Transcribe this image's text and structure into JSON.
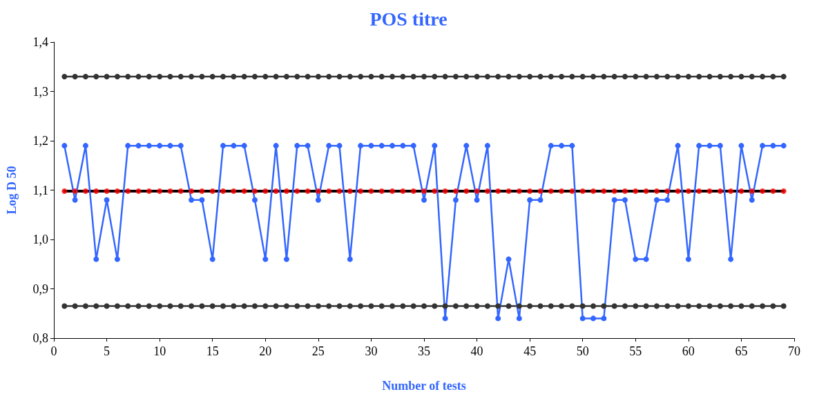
{
  "chart_data": {
    "type": "line",
    "title": "POS titre",
    "xlabel": "Number of tests",
    "ylabel": "Log D 50",
    "x": [
      1,
      2,
      3,
      4,
      5,
      6,
      7,
      8,
      9,
      10,
      11,
      12,
      13,
      14,
      15,
      16,
      17,
      18,
      19,
      20,
      21,
      22,
      23,
      24,
      25,
      26,
      27,
      28,
      29,
      30,
      31,
      32,
      33,
      34,
      35,
      36,
      37,
      38,
      39,
      40,
      41,
      42,
      43,
      44,
      45,
      46,
      47,
      48,
      49,
      50,
      51,
      52,
      53,
      54,
      55,
      56,
      57,
      58,
      59,
      60,
      61,
      62,
      63,
      64,
      65,
      66,
      67,
      68,
      69
    ],
    "series": [
      {
        "color": "#333333",
        "values": [
          1.33,
          1.33,
          1.33,
          1.33,
          1.33,
          1.33,
          1.33,
          1.33,
          1.33,
          1.33,
          1.33,
          1.33,
          1.33,
          1.33,
          1.33,
          1.33,
          1.33,
          1.33,
          1.33,
          1.33,
          1.33,
          1.33,
          1.33,
          1.33,
          1.33,
          1.33,
          1.33,
          1.33,
          1.33,
          1.33,
          1.33,
          1.33,
          1.33,
          1.33,
          1.33,
          1.33,
          1.33,
          1.33,
          1.33,
          1.33,
          1.33,
          1.33,
          1.33,
          1.33,
          1.33,
          1.33,
          1.33,
          1.33,
          1.33,
          1.33,
          1.33,
          1.33,
          1.33,
          1.33,
          1.33,
          1.33,
          1.33,
          1.33,
          1.33,
          1.33,
          1.33,
          1.33,
          1.33,
          1.33,
          1.33,
          1.33,
          1.33,
          1.33,
          1.33
        ]
      },
      {
        "color": "#333333",
        "values": [
          0.865,
          0.865,
          0.865,
          0.865,
          0.865,
          0.865,
          0.865,
          0.865,
          0.865,
          0.865,
          0.865,
          0.865,
          0.865,
          0.865,
          0.865,
          0.865,
          0.865,
          0.865,
          0.865,
          0.865,
          0.865,
          0.865,
          0.865,
          0.865,
          0.865,
          0.865,
          0.865,
          0.865,
          0.865,
          0.865,
          0.865,
          0.865,
          0.865,
          0.865,
          0.865,
          0.865,
          0.865,
          0.865,
          0.865,
          0.865,
          0.865,
          0.865,
          0.865,
          0.865,
          0.865,
          0.865,
          0.865,
          0.865,
          0.865,
          0.865,
          0.865,
          0.865,
          0.865,
          0.865,
          0.865,
          0.865,
          0.865,
          0.865,
          0.865,
          0.865,
          0.865,
          0.865,
          0.865,
          0.865,
          0.865,
          0.865,
          0.865,
          0.865,
          0.865
        ]
      },
      {
        "color": "#000000",
        "marker": "none",
        "values": [
          1.098,
          1.098,
          1.098,
          1.098,
          1.098,
          1.098,
          1.098,
          1.098,
          1.098,
          1.098,
          1.098,
          1.098,
          1.098,
          1.098,
          1.098,
          1.098,
          1.098,
          1.098,
          1.098,
          1.098,
          1.098,
          1.098,
          1.098,
          1.098,
          1.098,
          1.098,
          1.098,
          1.098,
          1.098,
          1.098,
          1.098,
          1.098,
          1.098,
          1.098,
          1.098,
          1.098,
          1.098,
          1.098,
          1.098,
          1.098,
          1.098,
          1.098,
          1.098,
          1.098,
          1.098,
          1.098,
          1.098,
          1.098,
          1.098,
          1.098,
          1.098,
          1.098,
          1.098,
          1.098,
          1.098,
          1.098,
          1.098,
          1.098,
          1.098,
          1.098,
          1.098,
          1.098,
          1.098,
          1.098,
          1.098,
          1.098,
          1.098,
          1.098,
          1.098
        ]
      },
      {
        "type": "scatter",
        "color": "#ff0000",
        "values": [
          1.098,
          1.098,
          1.098,
          1.098,
          1.098,
          1.098,
          1.098,
          1.098,
          1.098,
          1.098,
          1.098,
          1.098,
          1.098,
          1.098,
          1.098,
          1.098,
          1.098,
          1.098,
          1.098,
          1.098,
          1.098,
          1.098,
          1.098,
          1.098,
          1.098,
          1.098,
          1.098,
          1.098,
          1.098,
          1.098,
          1.098,
          1.098,
          1.098,
          1.098,
          1.098,
          1.098,
          1.098,
          1.098,
          1.098,
          1.098,
          1.098,
          1.098,
          1.098,
          1.098,
          1.098,
          1.098,
          1.098,
          1.098,
          1.098,
          1.098,
          1.098,
          1.098,
          1.098,
          1.098,
          1.098,
          1.098,
          1.098,
          1.098,
          1.098,
          1.098,
          1.098,
          1.098,
          1.098,
          1.098,
          1.098,
          1.098,
          1.098,
          1.098,
          1.098
        ]
      },
      {
        "color": "#3366ff",
        "values": [
          1.19,
          1.08,
          1.19,
          0.96,
          1.08,
          0.96,
          1.19,
          1.19,
          1.19,
          1.19,
          1.19,
          1.19,
          1.08,
          1.08,
          0.96,
          1.19,
          1.19,
          1.19,
          1.08,
          0.96,
          1.19,
          0.96,
          1.19,
          1.19,
          1.08,
          1.19,
          1.19,
          0.96,
          1.19,
          1.19,
          1.19,
          1.19,
          1.19,
          1.19,
          1.08,
          1.19,
          0.84,
          1.08,
          1.19,
          1.08,
          1.19,
          0.84,
          0.96,
          0.84,
          1.08,
          1.08,
          1.19,
          1.19,
          1.19,
          0.84,
          0.84,
          0.84,
          1.08,
          1.08,
          0.96,
          0.96,
          1.08,
          1.08,
          1.19,
          0.96,
          1.19,
          1.19,
          1.19,
          0.96,
          1.19,
          1.08,
          1.19,
          1.19,
          1.19
        ]
      }
    ],
    "marker": "circle",
    "line_style": "solid",
    "grid": false,
    "xlim": [
      0,
      70
    ],
    "xticks": [
      0,
      5,
      10,
      15,
      20,
      25,
      30,
      35,
      40,
      45,
      50,
      55,
      60,
      65,
      70
    ],
    "ylim": [
      0.8,
      1.4
    ],
    "yticks": [
      {
        "value": 0.8,
        "label": "0,8"
      },
      {
        "value": 0.9,
        "label": "0,9"
      },
      {
        "value": 1.0,
        "label": "1,0"
      },
      {
        "value": 1.1,
        "label": "1,1"
      },
      {
        "value": 1.2,
        "label": "1,2"
      },
      {
        "value": 1.3,
        "label": "1,3"
      },
      {
        "value": 1.4,
        "label": "1,4"
      }
    ]
  }
}
